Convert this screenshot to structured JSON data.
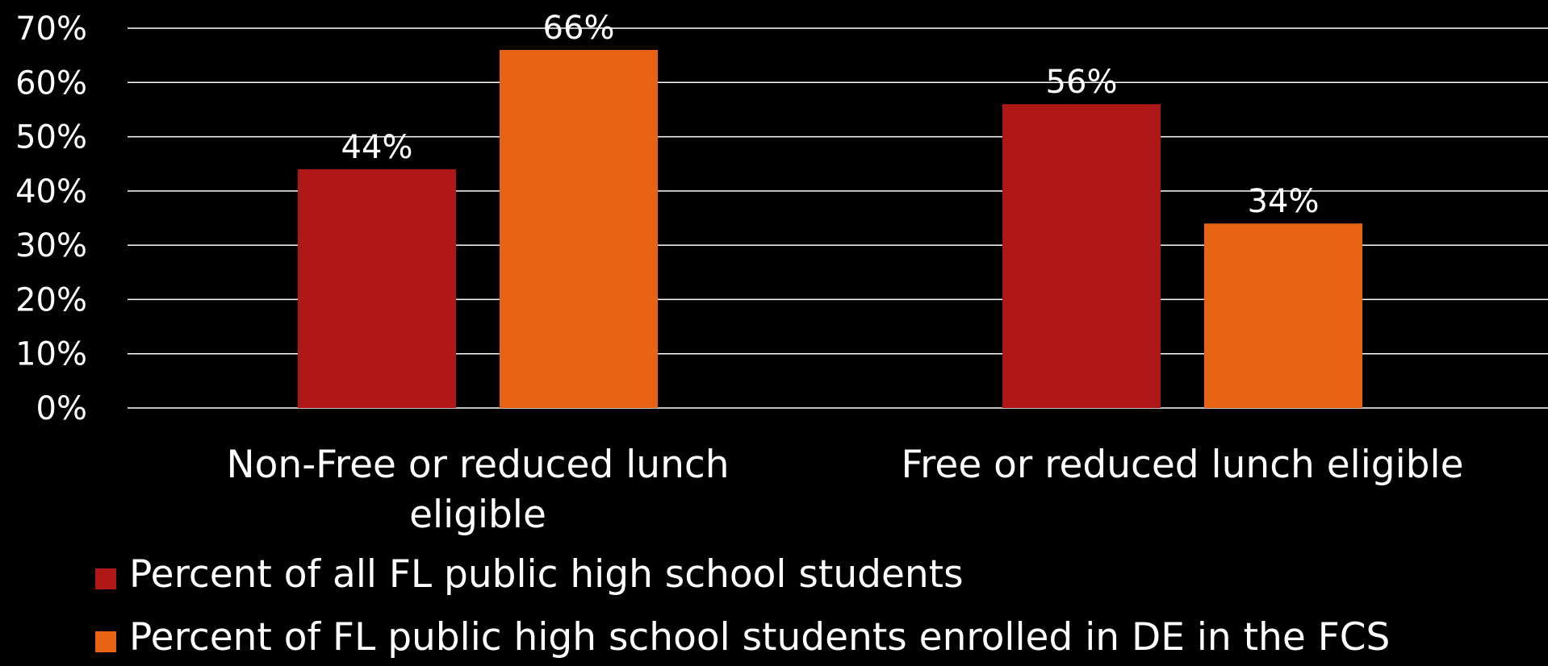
{
  "chart_data": {
    "type": "bar",
    "categories": [
      [
        "Non-Free or reduced lunch",
        "eligible"
      ],
      [
        "Free or reduced lunch eligible"
      ]
    ],
    "series": [
      {
        "name": "Percent of all FL public high school students",
        "color": "#B01717",
        "values": [
          44,
          56
        ]
      },
      {
        "name": "Percent of FL public high school students enrolled in DE in the FCS",
        "color": "#E86214",
        "values": [
          66,
          34
        ]
      }
    ],
    "data_labels": [
      [
        "44%",
        "56%"
      ],
      [
        "66%",
        "34%"
      ]
    ],
    "y_ticks": [
      "0%",
      "10%",
      "20%",
      "30%",
      "40%",
      "50%",
      "60%",
      "70%"
    ],
    "ylim": [
      0,
      70
    ],
    "grid": true,
    "legend_position": "bottom-left",
    "title": "",
    "xlabel": "",
    "ylabel": ""
  }
}
